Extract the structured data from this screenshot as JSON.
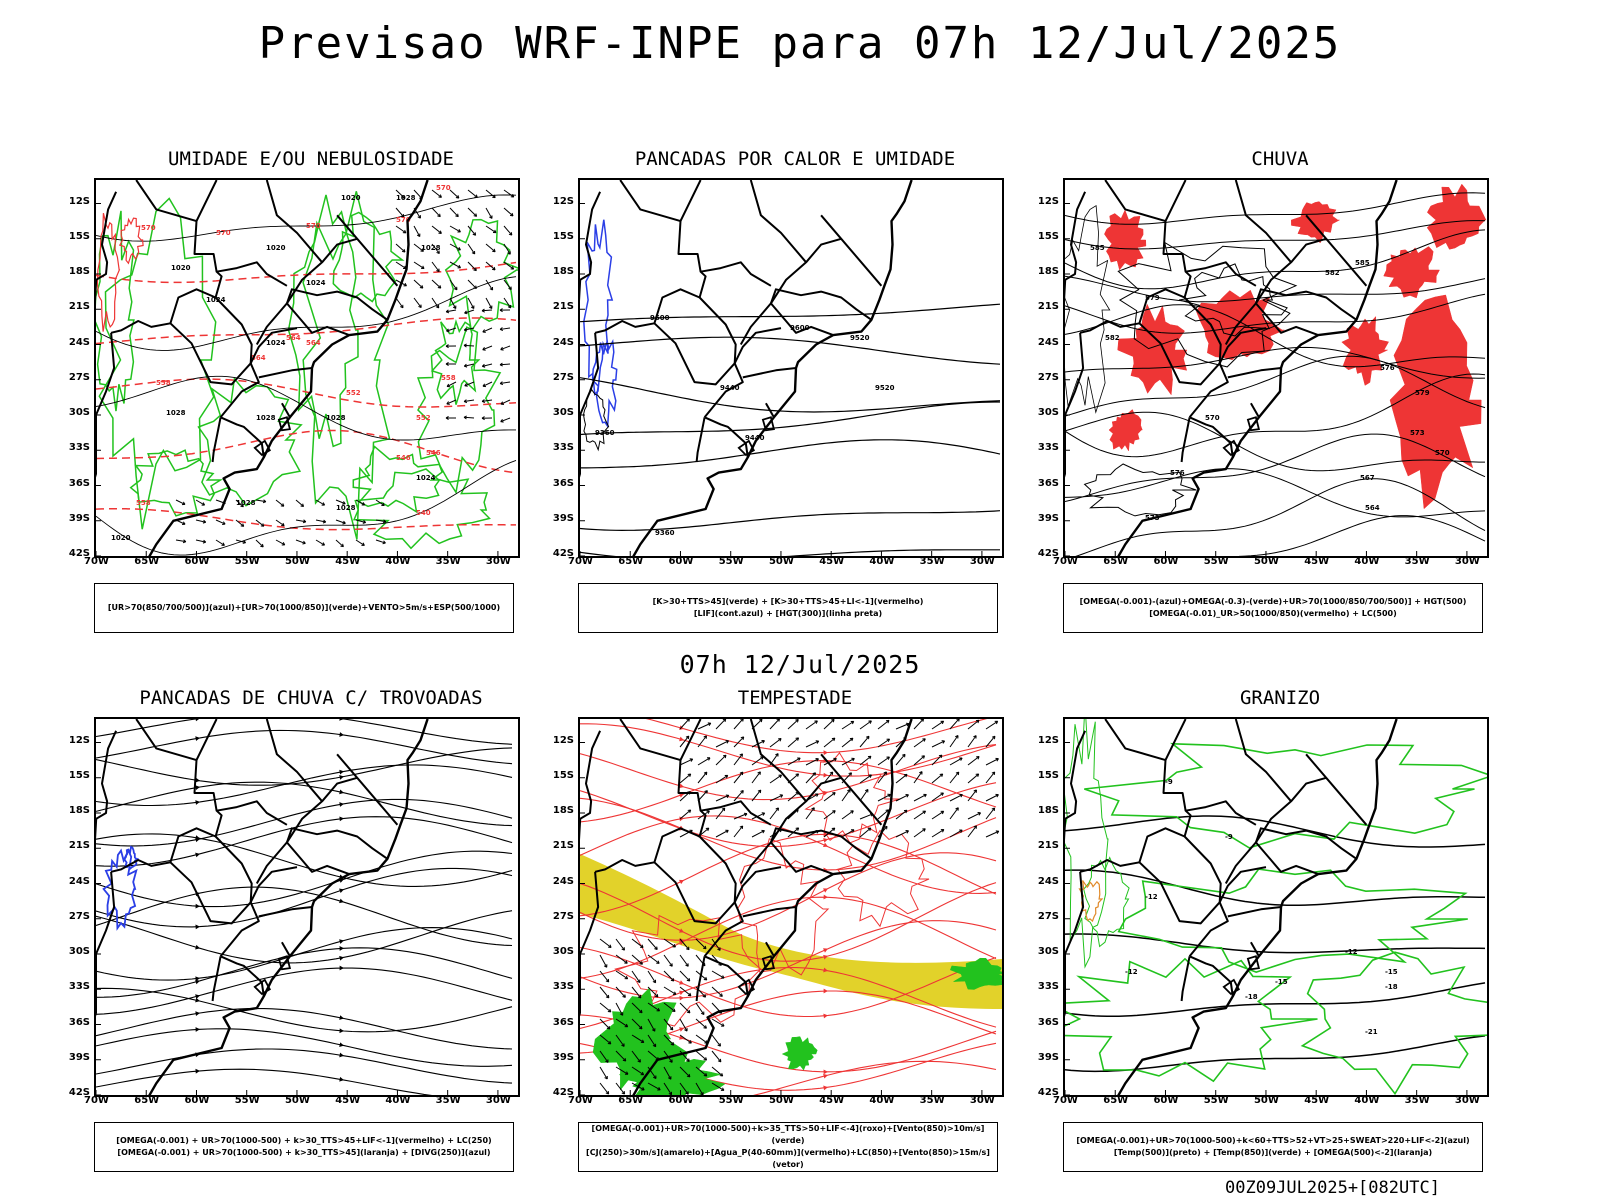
{
  "title": "Previsao WRF-INPE  para 07h 12/Jul/2025",
  "middle_title": "07h 12/Jul/2025",
  "footer": "00Z09JUL2025+[082UTC]",
  "axes": {
    "lat_labels": [
      "12S",
      "15S",
      "18S",
      "21S",
      "24S",
      "27S",
      "30S",
      "33S",
      "36S",
      "39S",
      "42S"
    ],
    "lon_labels": [
      "70W",
      "65W",
      "60W",
      "55W",
      "50W",
      "45W",
      "40W",
      "35W",
      "30W"
    ]
  },
  "colors": {
    "blue": "#2b3fe6",
    "green": "#22c21e",
    "red": "#ee3535",
    "yellow": "#e2d22a",
    "orange": "#e08a2a",
    "black": "#000000"
  },
  "chart_data": [
    {
      "type": "map",
      "title": "UMIDADE E/OU NEBULOSIDADE",
      "legend": [
        "[UR>70(850/700/500)](azul)+[UR>70(1000/850)](verde)+VENTO>5m/s+ESP(500/1000)"
      ],
      "contour_labels_black": [
        "1020",
        "1020",
        "1020",
        "1024",
        "1024",
        "1024",
        "1028",
        "1028",
        "1028",
        "1024",
        "1028",
        "1028",
        "1028",
        "1028",
        "1020"
      ],
      "contour_labels_red": [
        "570",
        "570",
        "570",
        "570",
        "570",
        "564",
        "564",
        "558",
        "552",
        "546",
        "558",
        "552",
        "546",
        "540",
        "558",
        "564"
      ]
    },
    {
      "type": "map",
      "title": "PANCADAS POR CALOR E UMIDADE",
      "legend": [
        "[K>30+TTS>45](verde) + [K>30+TTS>45+LI<-1](vermelho)",
        "[LIF](cont.azul) + [HGT(300)](linha preta)"
      ],
      "contour_labels_black": [
        "9600",
        "9600",
        "9520",
        "9440",
        "9520",
        "9440",
        "9360",
        "9360"
      ]
    },
    {
      "type": "map",
      "title": "CHUVA",
      "legend": [
        "[OMEGA(-0.001)-(azul)+OMEGA(-0.3)-(verde)+UR>70(1000/850/700/500)] + HGT(500)",
        "[OMEGA(-0.01)_UR>50(1000/850)(vermelho) + LC(500)"
      ],
      "contour_labels_black": [
        "585",
        "585",
        "582",
        "579",
        "582",
        "579",
        "576",
        "573",
        "570",
        "567",
        "564",
        "576",
        "573",
        "570"
      ]
    },
    {
      "type": "map",
      "title": "PANCADAS DE CHUVA C/ TROVOADAS",
      "legend": [
        "[OMEGA(-0.001) + UR>70(1000-500) + k>30_TTS>45+LIF<-1](vermelho) + LC(250)",
        "[OMEGA(-0.001) + UR>70(1000-500) + k>30_TTS>45](laranja) + [DIVG(250)](azul)"
      ]
    },
    {
      "type": "map",
      "title": "TEMPESTADE",
      "legend": [
        "[OMEGA(-0.001)+UR>70(1000-500)+k>35_TTS>50+LIF<-4](roxo)+[Vento(850)>10m/s](verde)",
        "[CJ(250)>30m/s](amarelo)+[Agua_P(40-60mm)](vermelho)+LC(850)+[Vento(850)>15m/s](vetor)"
      ]
    },
    {
      "type": "map",
      "title": "GRANIZO",
      "legend": [
        "[OMEGA(-0.001)+UR>70(1000-500)+k<60+TTS>52+VT>25+SWEAT>220+LIF<-2](azul)",
        "[Temp(500)](preto) + [Temp(850)](verde) + [OMEGA(500)<-2](laranja)"
      ],
      "contour_labels_black": [
        "-9",
        "-9",
        "-12",
        "-12",
        "-15",
        "-15",
        "-18",
        "-18",
        "-21",
        "-12"
      ]
    }
  ]
}
